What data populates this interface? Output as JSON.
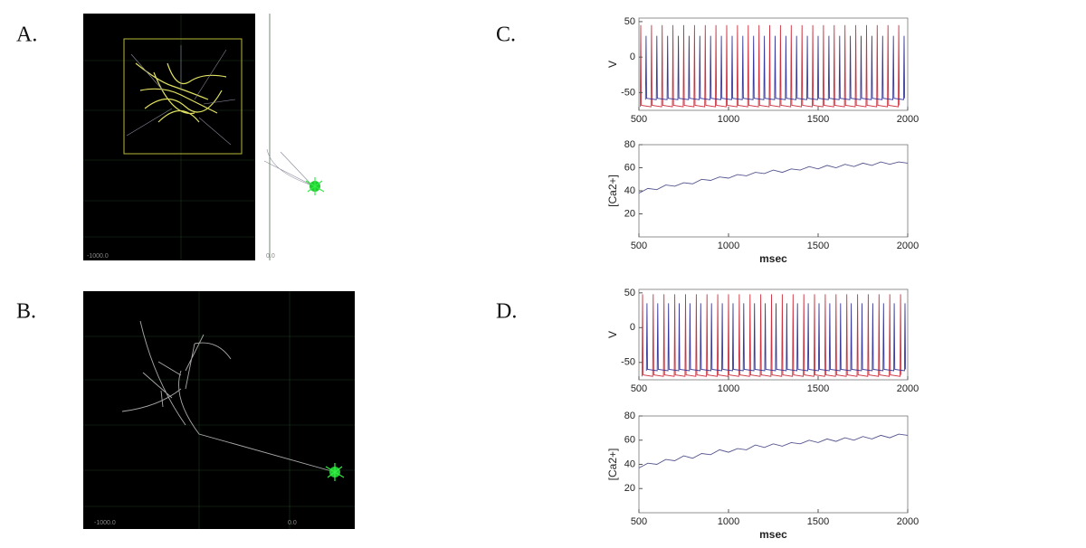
{
  "panels": [
    {
      "label": "A.",
      "scale_labels": [
        "-1000.0",
        "0.0"
      ]
    },
    {
      "label": "B.",
      "scale_labels": [
        "-1000.0",
        "0.0"
      ]
    },
    {
      "label": "C."
    },
    {
      "label": "D."
    }
  ],
  "chart_data": [
    {
      "type": "line",
      "y_label": "V",
      "xlim": [
        500,
        2000
      ],
      "xticks": [
        500,
        1000,
        1500,
        2000
      ],
      "ylim": [
        -75,
        55
      ],
      "yticks": [
        -50,
        0,
        50
      ],
      "series": [
        {
          "color": "#cc3340",
          "x": [
            507,
            510,
            513,
            567,
            570,
            573,
            627,
            630,
            633,
            687,
            690,
            693,
            747,
            750,
            753,
            807,
            810,
            813,
            867,
            870,
            873,
            927,
            930,
            933,
            987,
            990,
            993,
            1047,
            1050,
            1053,
            1107,
            1110,
            1113,
            1167,
            1170,
            1173,
            1227,
            1230,
            1233,
            1287,
            1290,
            1293,
            1347,
            1350,
            1353,
            1407,
            1410,
            1413,
            1467,
            1470,
            1473,
            1527,
            1530,
            1533,
            1587,
            1590,
            1593,
            1647,
            1650,
            1653,
            1707,
            1710,
            1713,
            1767,
            1770,
            1773,
            1827,
            1830,
            1833,
            1887,
            1890,
            1893,
            1947,
            1950,
            1953
          ],
          "values": [
            -70,
            45,
            -68,
            -70,
            45,
            -68,
            -70,
            45,
            -68,
            -70,
            45,
            -68,
            -70,
            45,
            -68,
            -70,
            45,
            -68,
            -70,
            45,
            -68,
            -70,
            45,
            -68,
            -70,
            45,
            -68,
            -70,
            45,
            -68,
            -70,
            45,
            -68,
            -70,
            45,
            -68,
            -70,
            45,
            -68,
            -70,
            45,
            -68,
            -70,
            45,
            -68,
            -70,
            45,
            -68,
            -70,
            45,
            -68,
            -70,
            45,
            -68,
            -70,
            45,
            -68,
            -70,
            45,
            -68,
            -70,
            45,
            -68,
            -70,
            45,
            -68,
            -70,
            45,
            -68,
            -70,
            45,
            -68,
            -70,
            45,
            -68
          ]
        },
        {
          "color": "#3a3a9a",
          "x": [
            537,
            540,
            543,
            597,
            600,
            603,
            657,
            660,
            663,
            717,
            720,
            723,
            777,
            780,
            783,
            837,
            840,
            843,
            897,
            900,
            903,
            957,
            960,
            963,
            1017,
            1020,
            1023,
            1077,
            1080,
            1083,
            1137,
            1140,
            1143,
            1197,
            1200,
            1203,
            1257,
            1260,
            1263,
            1317,
            1320,
            1323,
            1377,
            1380,
            1383,
            1437,
            1440,
            1443,
            1497,
            1500,
            1503,
            1557,
            1560,
            1563,
            1617,
            1620,
            1623,
            1677,
            1680,
            1683,
            1737,
            1740,
            1743,
            1797,
            1800,
            1803,
            1857,
            1860,
            1863,
            1917,
            1920,
            1923,
            1977,
            1980,
            1983
          ],
          "values": [
            -60,
            30,
            -58,
            -60,
            30,
            -58,
            -60,
            30,
            -58,
            -60,
            30,
            -58,
            -60,
            30,
            -58,
            -60,
            30,
            -58,
            -60,
            30,
            -58,
            -60,
            30,
            -58,
            -60,
            30,
            -58,
            -60,
            30,
            -58,
            -60,
            30,
            -58,
            -60,
            30,
            -58,
            -60,
            30,
            -58,
            -60,
            30,
            -58,
            -60,
            30,
            -58,
            -60,
            30,
            -58,
            -60,
            30,
            -58,
            -60,
            30,
            -58,
            -60,
            30,
            -58,
            -60,
            30,
            -58,
            -60,
            30,
            -58,
            -60,
            30,
            -58,
            -60,
            30,
            -58,
            -60,
            30,
            -58,
            -60,
            30,
            -58
          ]
        }
      ]
    },
    {
      "type": "line",
      "y_label": "[Ca2+]",
      "x_label": "msec",
      "xlim": [
        500,
        2000
      ],
      "xticks": [
        500,
        1000,
        1500,
        2000
      ],
      "ylim": [
        0,
        80
      ],
      "yticks": [
        20,
        40,
        60,
        80
      ],
      "series": [
        {
          "color": "#55558f",
          "x": [
            500,
            550,
            600,
            650,
            700,
            750,
            800,
            850,
            900,
            950,
            1000,
            1050,
            1100,
            1150,
            1200,
            1250,
            1300,
            1350,
            1400,
            1450,
            1500,
            1550,
            1600,
            1650,
            1700,
            1750,
            1800,
            1850,
            1900,
            1950,
            2000
          ],
          "values": [
            38,
            42,
            41,
            45,
            44,
            47,
            46,
            50,
            49,
            52,
            51,
            54,
            53,
            56,
            55,
            58,
            56,
            59,
            58,
            61,
            59,
            62,
            60,
            63,
            61,
            64,
            62,
            65,
            63,
            65,
            64
          ]
        }
      ]
    },
    {
      "type": "line",
      "y_label": "V",
      "xlim": [
        500,
        2000
      ],
      "xticks": [
        500,
        1000,
        1500,
        2000
      ],
      "ylim": [
        -75,
        55
      ],
      "yticks": [
        -50,
        0,
        50
      ],
      "series": [
        {
          "color": "#cc3340",
          "x": [
            517,
            520,
            523,
            577,
            580,
            583,
            637,
            640,
            643,
            697,
            700,
            703,
            757,
            760,
            763,
            817,
            820,
            823,
            877,
            880,
            883,
            937,
            940,
            943,
            997,
            1000,
            1003,
            1057,
            1060,
            1063,
            1117,
            1120,
            1123,
            1177,
            1180,
            1183,
            1237,
            1240,
            1243,
            1297,
            1300,
            1303,
            1357,
            1360,
            1363,
            1417,
            1420,
            1423,
            1477,
            1480,
            1483,
            1537,
            1540,
            1543,
            1597,
            1600,
            1603,
            1657,
            1660,
            1663,
            1717,
            1720,
            1723,
            1777,
            1780,
            1783,
            1837,
            1840,
            1843,
            1897,
            1900,
            1903,
            1957,
            1960,
            1963
          ],
          "values": [
            -70,
            48,
            -68,
            -70,
            48,
            -68,
            -70,
            48,
            -68,
            -70,
            48,
            -68,
            -70,
            48,
            -68,
            -70,
            48,
            -68,
            -70,
            48,
            -68,
            -70,
            48,
            -68,
            -70,
            48,
            -68,
            -70,
            48,
            -68,
            -70,
            48,
            -68,
            -70,
            48,
            -68,
            -70,
            48,
            -68,
            -70,
            48,
            -68,
            -70,
            48,
            -68,
            -70,
            48,
            -68,
            -70,
            48,
            -68,
            -70,
            48,
            -68,
            -70,
            48,
            -68,
            -70,
            48,
            -68,
            -70,
            48,
            -68,
            -70,
            48,
            -68,
            -70,
            48,
            -68,
            -70,
            48,
            -68,
            -70,
            48,
            -68
          ]
        },
        {
          "color": "#3a3a9a",
          "x": [
            542,
            545,
            548,
            602,
            605,
            608,
            662,
            665,
            668,
            722,
            725,
            728,
            782,
            785,
            788,
            842,
            845,
            848,
            902,
            905,
            908,
            962,
            965,
            968,
            1022,
            1025,
            1028,
            1082,
            1085,
            1088,
            1142,
            1145,
            1148,
            1202,
            1205,
            1208,
            1262,
            1265,
            1268,
            1322,
            1325,
            1328,
            1382,
            1385,
            1388,
            1442,
            1445,
            1448,
            1502,
            1505,
            1508,
            1562,
            1565,
            1568,
            1622,
            1625,
            1628,
            1682,
            1685,
            1688,
            1742,
            1745,
            1748,
            1802,
            1805,
            1808,
            1862,
            1865,
            1868,
            1922,
            1925,
            1928,
            1982,
            1985,
            1988
          ],
          "values": [
            -62,
            35,
            -60,
            -62,
            35,
            -60,
            -62,
            35,
            -60,
            -62,
            35,
            -60,
            -62,
            35,
            -60,
            -62,
            35,
            -60,
            -62,
            35,
            -60,
            -62,
            35,
            -60,
            -62,
            35,
            -60,
            -62,
            35,
            -60,
            -62,
            35,
            -60,
            -62,
            35,
            -60,
            -62,
            35,
            -60,
            -62,
            35,
            -60,
            -62,
            35,
            -60,
            -62,
            35,
            -60,
            -62,
            35,
            -60,
            -62,
            35,
            -60,
            -62,
            35,
            -60,
            -62,
            35,
            -60,
            -62,
            35,
            -60,
            -62,
            35,
            -60,
            -62,
            35,
            -60,
            -62,
            35,
            -60,
            -62,
            35,
            -60
          ]
        }
      ]
    },
    {
      "type": "line",
      "y_label": "[Ca2+]",
      "x_label": "msec",
      "xlim": [
        500,
        2000
      ],
      "xticks": [
        500,
        1000,
        1500,
        2000
      ],
      "ylim": [
        0,
        80
      ],
      "yticks": [
        20,
        40,
        60,
        80
      ],
      "series": [
        {
          "color": "#55558f",
          "x": [
            500,
            550,
            600,
            650,
            700,
            750,
            800,
            850,
            900,
            950,
            1000,
            1050,
            1100,
            1150,
            1200,
            1250,
            1300,
            1350,
            1400,
            1450,
            1500,
            1550,
            1600,
            1650,
            1700,
            1750,
            1800,
            1850,
            1900,
            1950,
            2000
          ],
          "values": [
            37,
            41,
            40,
            44,
            43,
            47,
            45,
            49,
            48,
            52,
            50,
            53,
            52,
            56,
            54,
            57,
            55,
            58,
            57,
            60,
            58,
            61,
            59,
            62,
            60,
            63,
            61,
            64,
            62,
            65,
            64
          ]
        }
      ]
    }
  ]
}
